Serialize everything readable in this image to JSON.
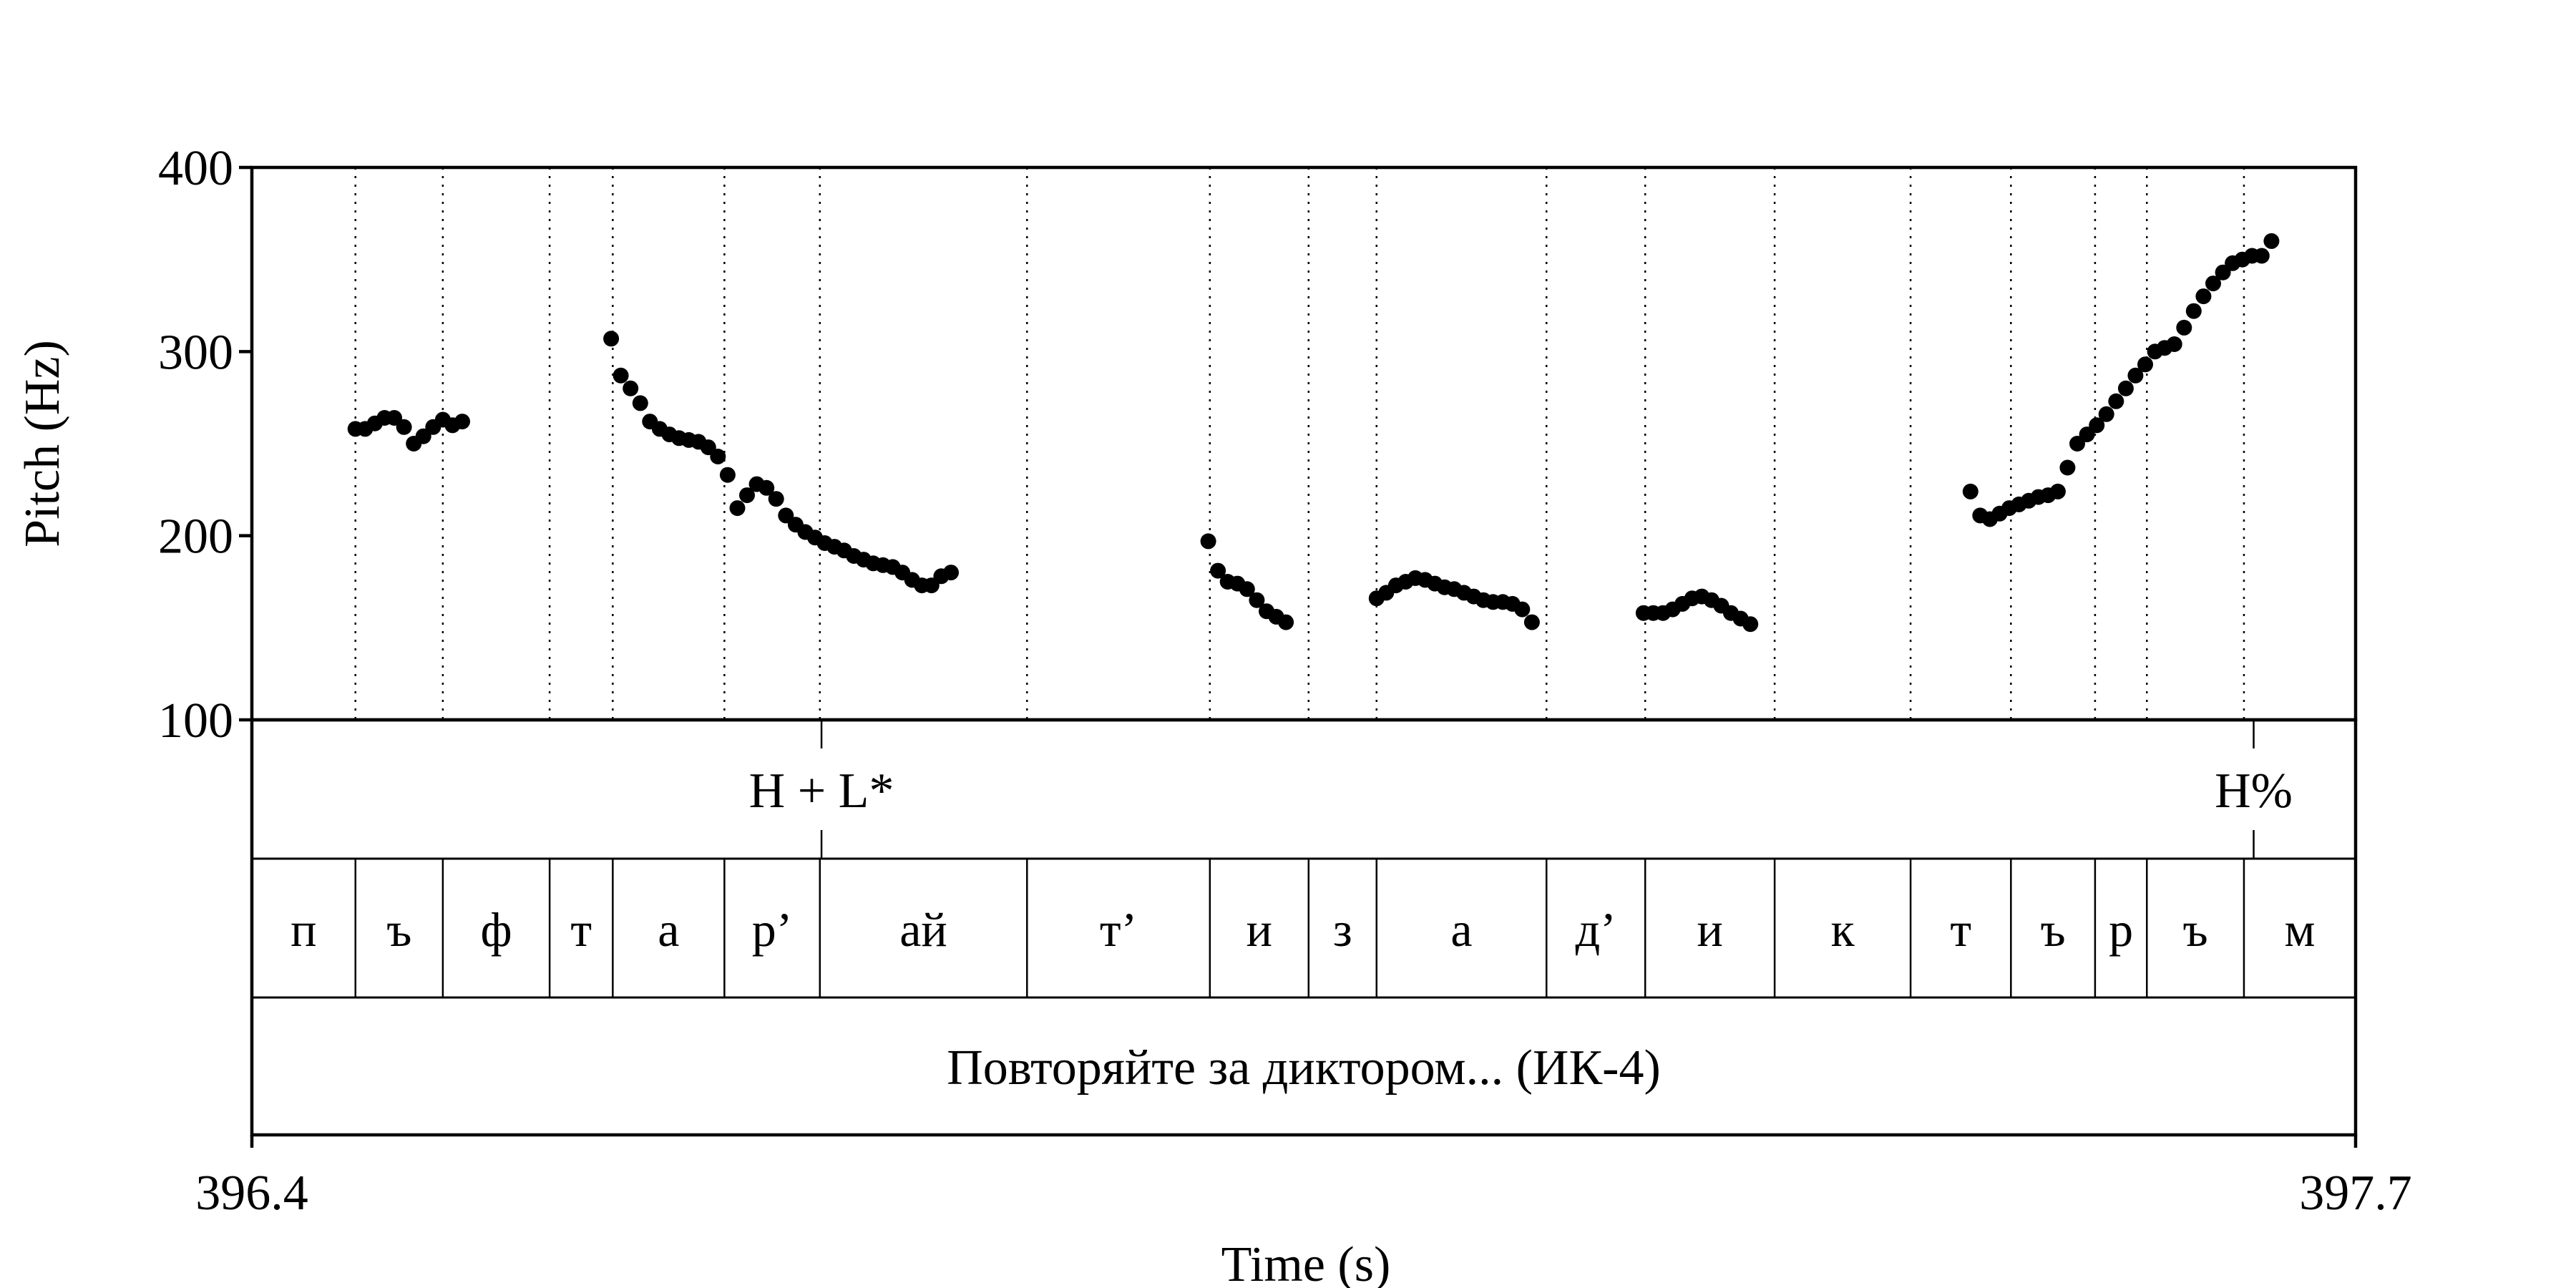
{
  "chart_data": {
    "type": "scatter",
    "xlabel": "Time (s)",
    "ylabel": "Pitch (Hz)",
    "xlim": [
      396.4,
      397.7
    ],
    "ylim": [
      100,
      400
    ],
    "x_tick_labels": [
      "396.4",
      "397.7"
    ],
    "y_ticks": [
      100,
      200,
      300,
      400
    ],
    "y_tick_labels": [
      "100",
      "200",
      "300",
      "400"
    ],
    "grid": false,
    "legend": "none",
    "marker_color": "#000000",
    "series": [
      {
        "points": [
          [
            396.464,
            258
          ],
          [
            396.47,
            258
          ],
          [
            396.476,
            261
          ],
          [
            396.482,
            264
          ],
          [
            396.488,
            264
          ],
          [
            396.494,
            259
          ],
          [
            396.5,
            250
          ],
          [
            396.506,
            254
          ],
          [
            396.512,
            259
          ],
          [
            396.518,
            263
          ],
          [
            396.524,
            260
          ],
          [
            396.53,
            262
          ],
          [
            396.622,
            307
          ],
          [
            396.628,
            287
          ],
          [
            396.634,
            280
          ],
          [
            396.64,
            272
          ],
          [
            396.646,
            262
          ],
          [
            396.652,
            258
          ],
          [
            396.658,
            255
          ],
          [
            396.664,
            253
          ],
          [
            396.67,
            252
          ],
          [
            396.676,
            251
          ],
          [
            396.682,
            248
          ],
          [
            396.688,
            243
          ],
          [
            396.694,
            233
          ],
          [
            396.7,
            215
          ],
          [
            396.706,
            222
          ],
          [
            396.712,
            228
          ],
          [
            396.718,
            226
          ],
          [
            396.724,
            220
          ],
          [
            396.73,
            211
          ],
          [
            396.736,
            206
          ],
          [
            396.742,
            202
          ],
          [
            396.748,
            199
          ],
          [
            396.754,
            196
          ],
          [
            396.76,
            194
          ],
          [
            396.766,
            192
          ],
          [
            396.772,
            189
          ],
          [
            396.778,
            187
          ],
          [
            396.784,
            185
          ],
          [
            396.79,
            184
          ],
          [
            396.796,
            183
          ],
          [
            396.802,
            180
          ],
          [
            396.808,
            176
          ],
          [
            396.814,
            173
          ],
          [
            396.82,
            173
          ],
          [
            396.826,
            178
          ],
          [
            396.832,
            180
          ],
          [
            396.991,
            197
          ],
          [
            396.997,
            181
          ],
          [
            397.003,
            175
          ],
          [
            397.009,
            174
          ],
          [
            397.015,
            171
          ],
          [
            397.021,
            165
          ],
          [
            397.027,
            159
          ],
          [
            397.033,
            156
          ],
          [
            397.039,
            153
          ],
          [
            397.095,
            166
          ],
          [
            397.101,
            169
          ],
          [
            397.107,
            173
          ],
          [
            397.113,
            175
          ],
          [
            397.119,
            177
          ],
          [
            397.125,
            176
          ],
          [
            397.131,
            174
          ],
          [
            397.137,
            172
          ],
          [
            397.143,
            171
          ],
          [
            397.149,
            169
          ],
          [
            397.155,
            167
          ],
          [
            397.161,
            165
          ],
          [
            397.167,
            164
          ],
          [
            397.173,
            164
          ],
          [
            397.179,
            163
          ],
          [
            397.185,
            160
          ],
          [
            397.191,
            153
          ],
          [
            397.26,
            158
          ],
          [
            397.266,
            158
          ],
          [
            397.272,
            158
          ],
          [
            397.278,
            160
          ],
          [
            397.284,
            163
          ],
          [
            397.29,
            166
          ],
          [
            397.296,
            167
          ],
          [
            397.302,
            165
          ],
          [
            397.308,
            162
          ],
          [
            397.314,
            158
          ],
          [
            397.32,
            155
          ],
          [
            397.326,
            152
          ],
          [
            397.462,
            224
          ],
          [
            397.468,
            211
          ],
          [
            397.474,
            209
          ],
          [
            397.48,
            212
          ],
          [
            397.486,
            215
          ],
          [
            397.492,
            217
          ],
          [
            397.498,
            219
          ],
          [
            397.504,
            221
          ],
          [
            397.51,
            222
          ],
          [
            397.516,
            224
          ],
          [
            397.522,
            237
          ],
          [
            397.528,
            250
          ],
          [
            397.534,
            255
          ],
          [
            397.54,
            260
          ],
          [
            397.546,
            266
          ],
          [
            397.552,
            273
          ],
          [
            397.558,
            280
          ],
          [
            397.564,
            287
          ],
          [
            397.57,
            293
          ],
          [
            397.576,
            300
          ],
          [
            397.582,
            302
          ],
          [
            397.588,
            304
          ],
          [
            397.594,
            313
          ],
          [
            397.6,
            322
          ],
          [
            397.606,
            330
          ],
          [
            397.612,
            337
          ],
          [
            397.618,
            343
          ],
          [
            397.624,
            348
          ],
          [
            397.63,
            350
          ],
          [
            397.636,
            352
          ],
          [
            397.642,
            352
          ],
          [
            397.648,
            360
          ]
        ]
      }
    ]
  },
  "tones": [
    {
      "time": 396.752,
      "label": "H + L*"
    },
    {
      "time": 397.637,
      "label": "H%"
    }
  ],
  "segments": [
    {
      "start": 396.4,
      "end": 396.464,
      "label": "п"
    },
    {
      "start": 396.464,
      "end": 396.518,
      "label": "ъ"
    },
    {
      "start": 396.518,
      "end": 396.584,
      "label": "ф"
    },
    {
      "start": 396.584,
      "end": 396.623,
      "label": "т"
    },
    {
      "start": 396.623,
      "end": 396.692,
      "label": "а"
    },
    {
      "start": 396.692,
      "end": 396.751,
      "label": "р’"
    },
    {
      "start": 396.751,
      "end": 396.879,
      "label": "ай"
    },
    {
      "start": 396.879,
      "end": 396.992,
      "label": "т’"
    },
    {
      "start": 396.992,
      "end": 397.053,
      "label": "и"
    },
    {
      "start": 397.053,
      "end": 397.095,
      "label": "з"
    },
    {
      "start": 397.095,
      "end": 397.2,
      "label": "а"
    },
    {
      "start": 397.2,
      "end": 397.261,
      "label": "д’"
    },
    {
      "start": 397.261,
      "end": 397.341,
      "label": "и"
    },
    {
      "start": 397.341,
      "end": 397.425,
      "label": "к"
    },
    {
      "start": 397.425,
      "end": 397.487,
      "label": "т"
    },
    {
      "start": 397.487,
      "end": 397.539,
      "label": "ъ"
    },
    {
      "start": 397.539,
      "end": 397.571,
      "label": "р"
    },
    {
      "start": 397.571,
      "end": 397.631,
      "label": "ъ"
    },
    {
      "start": 397.631,
      "end": 397.7,
      "label": "м"
    }
  ],
  "phrase": "Повторяйте за диктором... (ИК-4)"
}
